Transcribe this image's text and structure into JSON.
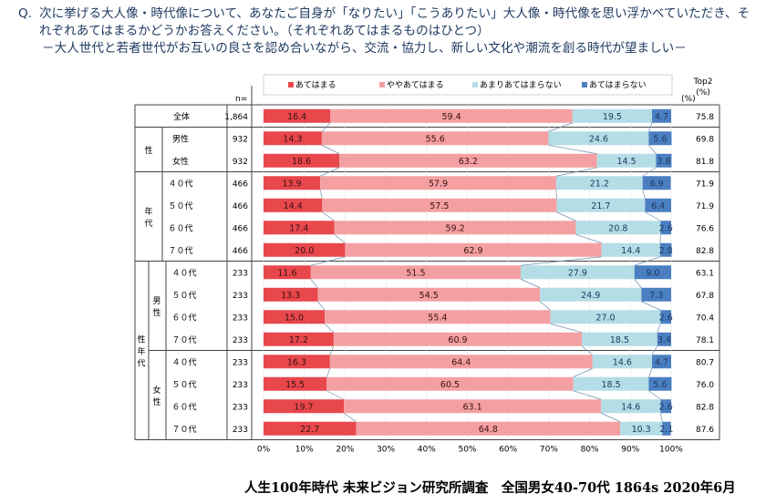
{
  "question": {
    "prefix": "Q.",
    "line1": "次に挙げる大人像・時代像について、あなたご自身が「なりたい」「こうありたい」大人像・時代像を思い浮かべていただき、そ",
    "line2": "れぞれあてはまるかどうかお答えください。（それぞれあてはまるものはひとつ）",
    "line3": "－大人世代と若者世代がお互いの良さを認め合いながら、交流・協力し、新しい文化や潮流を創る時代が望ましい－"
  },
  "footer": "人生100年時代 未来ビジョン研究所調査　全国男女40-70代 1864s  2020年6月",
  "colors": {
    "s1": "#e8474c",
    "s2": "#f4a0a2",
    "s3": "#b4dde6",
    "s4": "#4a7fc1",
    "line": "#6f8faf"
  },
  "chart_data": {
    "type": "bar",
    "orientation": "horizontal",
    "stacked": true,
    "n_header": "n=",
    "unit_label": "(%)",
    "top2_header": [
      "Top2",
      "(%)"
    ],
    "legend": [
      "あてはまる",
      "ややあてはまる",
      "あまりあてはまらない",
      "あてはまらない"
    ],
    "legend_position": "top",
    "xlim": [
      0,
      100
    ],
    "xticks": [
      "0%",
      "10%",
      "20%",
      "30%",
      "40%",
      "50%",
      "60%",
      "70%",
      "80%",
      "90%",
      "100%"
    ],
    "group_labels": [
      {
        "label": "性",
        "rows": [
          1,
          2
        ]
      },
      {
        "label": "年代",
        "rows": [
          3,
          6
        ]
      },
      {
        "label": "性年代",
        "rows": [
          7,
          14
        ]
      },
      {
        "label": "男性",
        "rows": [
          7,
          10
        ]
      },
      {
        "label": "女性",
        "rows": [
          11,
          14
        ]
      }
    ],
    "rows": [
      {
        "label": "全体",
        "n": "1,864",
        "values": [
          16.4,
          59.4,
          19.5,
          4.7
        ],
        "top2": "75.8"
      },
      {
        "label": "男性",
        "n": "932",
        "values": [
          14.3,
          55.6,
          24.6,
          5.6
        ],
        "top2": "69.8"
      },
      {
        "label": "女性",
        "n": "932",
        "values": [
          18.6,
          63.2,
          14.5,
          3.8
        ],
        "top2": "81.8"
      },
      {
        "label": "４０代",
        "n": "466",
        "values": [
          13.9,
          57.9,
          21.2,
          6.9
        ],
        "top2": "71.9"
      },
      {
        "label": "５０代",
        "n": "466",
        "values": [
          14.4,
          57.5,
          21.7,
          6.4
        ],
        "top2": "71.9"
      },
      {
        "label": "６０代",
        "n": "466",
        "values": [
          17.4,
          59.2,
          20.8,
          2.6
        ],
        "top2": "76.6"
      },
      {
        "label": "７０代",
        "n": "466",
        "values": [
          20.0,
          62.9,
          14.4,
          2.8
        ],
        "top2": "82.8"
      },
      {
        "label": "４０代",
        "n": "233",
        "values": [
          11.6,
          51.5,
          27.9,
          9.0
        ],
        "top2": "63.1"
      },
      {
        "label": "５０代",
        "n": "233",
        "values": [
          13.3,
          54.5,
          24.9,
          7.3
        ],
        "top2": "67.8"
      },
      {
        "label": "６０代",
        "n": "233",
        "values": [
          15.0,
          55.4,
          27.0,
          2.6
        ],
        "top2": "70.4"
      },
      {
        "label": "７０代",
        "n": "233",
        "values": [
          17.2,
          60.9,
          18.5,
          3.4
        ],
        "top2": "78.1"
      },
      {
        "label": "４０代",
        "n": "233",
        "values": [
          16.3,
          64.4,
          14.6,
          4.7
        ],
        "top2": "80.7"
      },
      {
        "label": "５０代",
        "n": "233",
        "values": [
          15.5,
          60.5,
          18.5,
          5.6
        ],
        "top2": "76.0"
      },
      {
        "label": "６０代",
        "n": "233",
        "values": [
          19.7,
          63.1,
          14.6,
          2.6
        ],
        "top2": "82.8"
      },
      {
        "label": "７０代",
        "n": "233",
        "values": [
          22.7,
          64.8,
          10.3,
          2.1
        ],
        "top2": "87.6"
      }
    ]
  }
}
